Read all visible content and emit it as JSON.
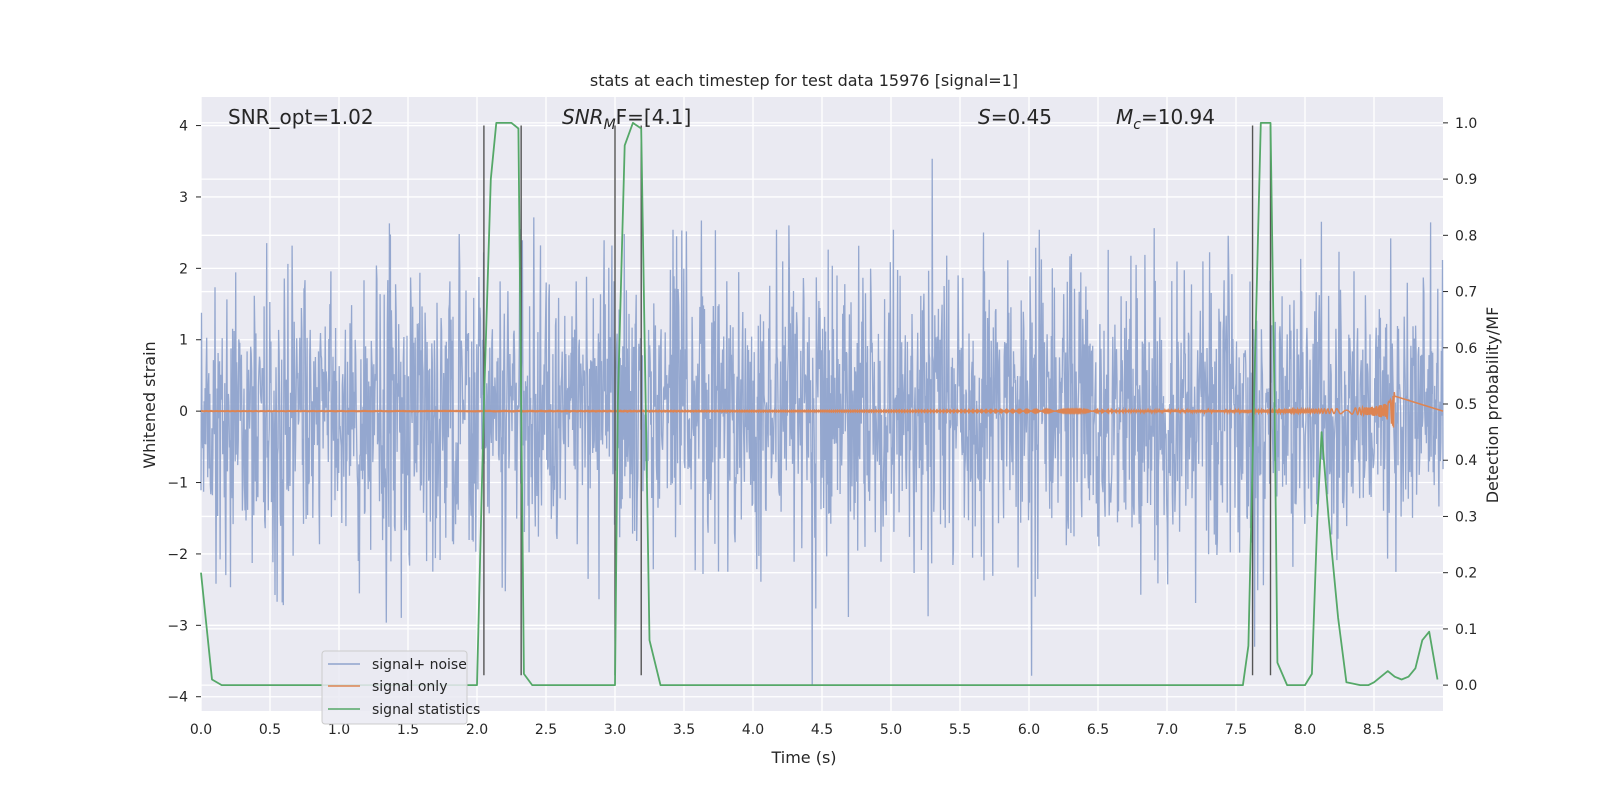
{
  "chart_data": {
    "type": "line",
    "title": "stats at each timestep for test data 15976 [signal=1]",
    "xlabel": "Time (s)",
    "ylabel_left": "Whitened strain",
    "ylabel_right": "Detection probability/MF",
    "xlim": [
      0,
      9.0
    ],
    "ylim_left": [
      -4.2,
      4.4
    ],
    "ylim_right": [
      -0.046,
      1.046
    ],
    "grid": true,
    "legend_position": "lower-left",
    "x_ticks": [
      "0.0",
      "0.5",
      "1.0",
      "1.5",
      "2.0",
      "2.5",
      "3.0",
      "3.5",
      "4.0",
      "4.5",
      "5.0",
      "5.5",
      "6.0",
      "6.5",
      "7.0",
      "7.5",
      "8.0",
      "8.5"
    ],
    "y_ticks_left": [
      "4",
      "3",
      "2",
      "1",
      "0",
      "−1",
      "−2",
      "−3",
      "−4"
    ],
    "y_ticks_right": [
      "1.0",
      "0.9",
      "0.8",
      "0.7",
      "0.6",
      "0.5",
      "0.4",
      "0.3",
      "0.2",
      "0.1",
      "0.0"
    ],
    "annotations": [
      {
        "text": "SNR_opt=1.02"
      },
      {
        "text": "SNR",
        "sub": "M",
        "rest": "F=[4.1]"
      },
      {
        "text": "S",
        "rest": "=0.45"
      },
      {
        "text": "M",
        "sub": "c",
        "rest": "=10.94"
      }
    ],
    "vertical_lines_x": [
      2.05,
      2.32,
      3.0,
      3.19,
      7.62,
      7.75
    ],
    "vertical_line_range_left": [
      -3.7,
      4.0
    ],
    "series": [
      {
        "name": "signal+ noise",
        "color": "#8fa3cc",
        "kind": "noise",
        "sigma": 1.0,
        "x_range": [
          0,
          9.0
        ]
      },
      {
        "name": "signal only",
        "color": "#dd8452",
        "kind": "chirp",
        "x_range": [
          0,
          8.65
        ],
        "amplitude_end": 0.3
      },
      {
        "name": "signal statistics",
        "color": "#55a868",
        "axis": "right",
        "x": [
          0.0,
          0.08,
          0.15,
          0.3,
          1.9,
          2.0,
          2.05,
          2.1,
          2.14,
          2.25,
          2.3,
          2.34,
          2.4,
          2.5,
          3.0,
          3.02,
          3.07,
          3.13,
          3.19,
          3.25,
          3.33,
          3.5,
          7.55,
          7.59,
          7.63,
          7.68,
          7.75,
          7.78,
          7.8,
          7.87,
          7.95,
          8.0,
          8.05,
          8.09,
          8.12,
          8.17,
          8.24,
          8.3,
          8.4,
          8.46,
          8.5,
          8.55,
          8.6,
          8.65,
          8.7,
          8.75,
          8.8,
          8.85,
          8.9,
          8.96
        ],
        "values": [
          0.2,
          0.01,
          0.0,
          0.0,
          0.0,
          0.0,
          0.5,
          0.9,
          1.0,
          1.0,
          0.99,
          0.02,
          0.0,
          0.0,
          0.0,
          0.5,
          0.96,
          1.0,
          0.99,
          0.08,
          0.0,
          0.0,
          0.0,
          0.07,
          0.5,
          1.0,
          1.0,
          0.5,
          0.04,
          0.0,
          0.0,
          0.0,
          0.02,
          0.3,
          0.45,
          0.3,
          0.12,
          0.005,
          0.0,
          0.0,
          0.005,
          0.015,
          0.025,
          0.015,
          0.01,
          0.015,
          0.03,
          0.08,
          0.095,
          0.01
        ]
      }
    ]
  }
}
